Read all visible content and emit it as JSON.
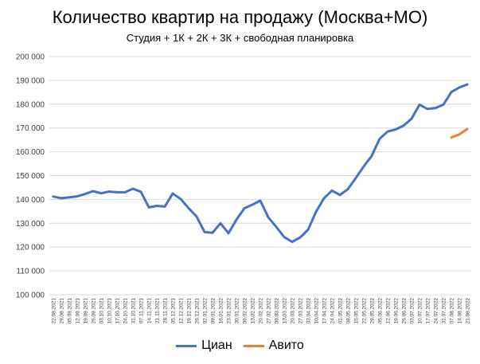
{
  "chart_data": {
    "type": "line",
    "title": "Количество квартир на продажу (Москва+МО)",
    "subtitle": "Студия + 1К + 2К + 3К + свободная планировка",
    "ylim": [
      100000,
      200000
    ],
    "yticks": [
      100000,
      110000,
      120000,
      130000,
      140000,
      150000,
      160000,
      170000,
      180000,
      190000,
      200000
    ],
    "ytick_labels": [
      "100 000",
      "110 000",
      "120 000",
      "130 000",
      "140 000",
      "150 000",
      "160 000",
      "170 000",
      "180 000",
      "190 000",
      "200 000"
    ],
    "grid": true,
    "legend_position": "bottom",
    "categories": [
      "22.08.2021",
      "29.08.2021",
      "05.09.2021",
      "12.09.2021",
      "19.09.2021",
      "26.09.2021",
      "03.10.2021",
      "10.10.2021",
      "17.10.2021",
      "24.10.2021",
      "31.10.2021",
      "07.11.2021",
      "14.11.2021",
      "21.11.2021",
      "28.11.2021",
      "05.12.2021",
      "12.12.2021",
      "19.12.2021",
      "26.12.2021",
      "02.01.2022",
      "09.01.2022",
      "16.01.2022",
      "23.01.2022",
      "30.01.2022",
      "06.02.2022",
      "13.02.2022",
      "20.02.2022",
      "27.02.2022",
      "06.03.2022",
      "13.03.2022",
      "20.03.2022",
      "27.03.2022",
      "03.04.2022",
      "10.04.2022",
      "17.04.2022",
      "24.04.2022",
      "01.05.2022",
      "08.05.2022",
      "15.05.2022",
      "22.05.2022",
      "29.05.2022",
      "05.06.2022",
      "12.06.2022",
      "19.06.2022",
      "26.06.2022",
      "03.07.2022",
      "10.07.2022",
      "17.07.2022",
      "24.07.2022",
      "31.07.2022",
      "07.08.2022",
      "14.08.2022",
      "21.08.2022"
    ],
    "series": [
      {
        "name": "Циан",
        "color": "#4472C4",
        "values": [
          141200,
          140500,
          140900,
          141300,
          142300,
          143500,
          142600,
          143300,
          143000,
          143000,
          144500,
          143200,
          136700,
          137300,
          137000,
          142500,
          140200,
          136300,
          132800,
          126300,
          126000,
          130000,
          125800,
          131500,
          136300,
          137800,
          139500,
          132500,
          128500,
          124200,
          122200,
          124000,
          127300,
          134800,
          140500,
          143700,
          141900,
          144300,
          149000,
          153900,
          158300,
          165500,
          168500,
          169400,
          171000,
          173900,
          179800,
          178000,
          178400,
          179800,
          185100,
          187000,
          188300
        ]
      },
      {
        "name": "Авито",
        "color": "#ED7D31",
        "values": [
          null,
          null,
          null,
          null,
          null,
          null,
          null,
          null,
          null,
          null,
          null,
          null,
          null,
          null,
          null,
          null,
          null,
          null,
          null,
          null,
          null,
          null,
          null,
          null,
          null,
          null,
          null,
          null,
          null,
          null,
          null,
          null,
          null,
          null,
          null,
          null,
          null,
          null,
          null,
          null,
          null,
          null,
          null,
          null,
          null,
          null,
          null,
          null,
          null,
          null,
          166000,
          167300,
          169600
        ]
      }
    ]
  }
}
